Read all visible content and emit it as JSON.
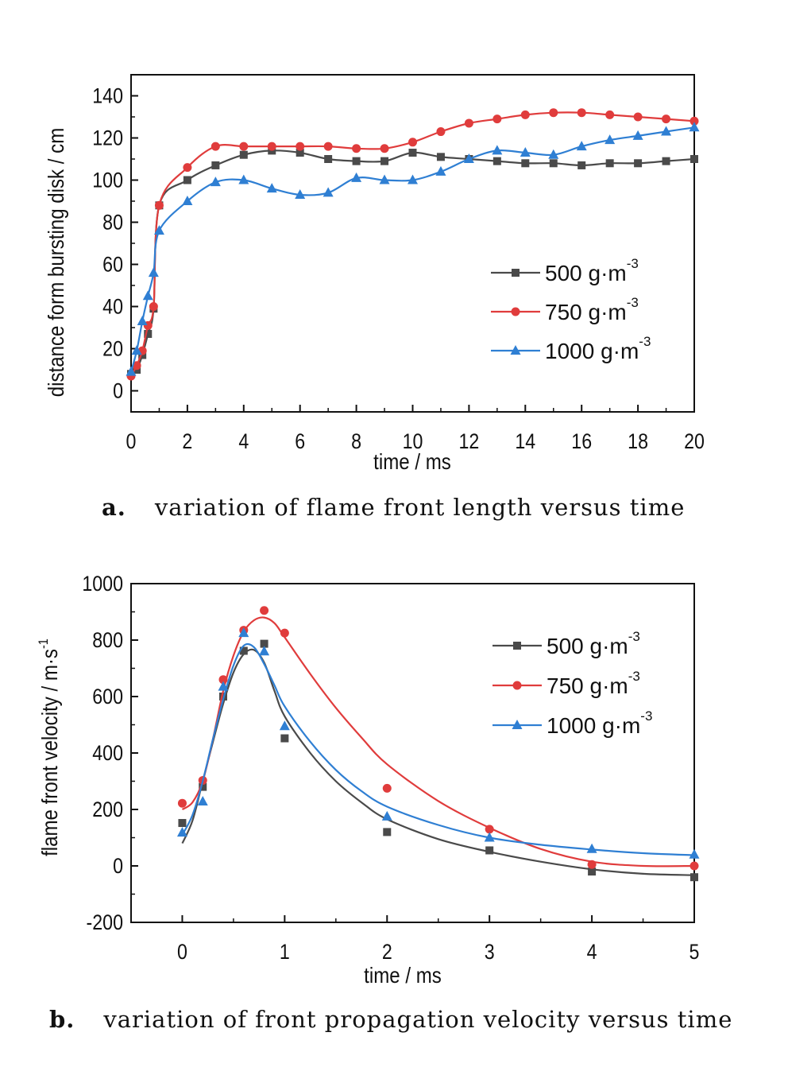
{
  "colors": {
    "s500": "#4a4a4a",
    "s750": "#e03c3c",
    "s1000": "#2f7fd3"
  },
  "captions": {
    "a_tag": "a.",
    "a_text": "variation of flame front length versus time",
    "b_tag": "b.",
    "b_text": "variation of front propagation velocity versus time"
  },
  "chart_data": [
    {
      "type": "line",
      "xlabel": "time / ms",
      "ylabel": "distance form bursting disk / cm",
      "xlim": [
        0,
        20
      ],
      "ylim": [
        -10,
        150
      ],
      "xticks": [
        0,
        2,
        4,
        6,
        8,
        10,
        12,
        14,
        16,
        18,
        20
      ],
      "yticks": [
        0,
        20,
        40,
        60,
        80,
        100,
        120,
        140
      ],
      "legend_position": "lower-right",
      "series": [
        {
          "name": "500 g·m",
          "sup": "-3",
          "color": "#4a4a4a",
          "marker": "square",
          "x": [
            0,
            0.2,
            0.4,
            0.6,
            0.8,
            1,
            2,
            3,
            4,
            5,
            6,
            7,
            8,
            9,
            10,
            11,
            12,
            13,
            14,
            15,
            16,
            17,
            18,
            19,
            20
          ],
          "y": [
            8,
            10,
            17,
            27,
            39,
            88,
            100,
            107,
            112,
            114,
            113,
            110,
            109,
            109,
            113,
            111,
            110,
            109,
            108,
            108,
            107,
            108,
            108,
            109,
            110
          ]
        },
        {
          "name": "750 g·m",
          "sup": "-3",
          "color": "#e03c3c",
          "marker": "circle",
          "x": [
            0,
            0.2,
            0.4,
            0.6,
            0.8,
            1,
            2,
            3,
            4,
            5,
            6,
            7,
            8,
            9,
            10,
            11,
            12,
            13,
            14,
            15,
            16,
            17,
            18,
            19,
            20
          ],
          "y": [
            7,
            12,
            19,
            31,
            40,
            88,
            106,
            116,
            116,
            116,
            116,
            116,
            115,
            115,
            118,
            123,
            127,
            129,
            131,
            132,
            132,
            131,
            130,
            129,
            128
          ]
        },
        {
          "name": "1000 g·m",
          "sup": "-3",
          "color": "#2f7fd3",
          "marker": "triangle",
          "x": [
            0,
            0.2,
            0.4,
            0.6,
            0.8,
            1,
            2,
            3,
            4,
            5,
            6,
            7,
            8,
            9,
            10,
            11,
            12,
            13,
            14,
            15,
            16,
            17,
            18,
            19,
            20
          ],
          "y": [
            9,
            19,
            33,
            45,
            56,
            76,
            90,
            99,
            100,
            96,
            93,
            94,
            101,
            100,
            100,
            104,
            110,
            114,
            113,
            112,
            116,
            119,
            121,
            123,
            125
          ]
        }
      ]
    },
    {
      "type": "scatter",
      "xlabel": "time  / ms",
      "ylabel": "flame front velocity / m·s",
      "ylabel_sup": "-1",
      "xlim": [
        -0.5,
        5
      ],
      "ylim": [
        -200,
        1000
      ],
      "xticks": [
        0,
        1,
        2,
        3,
        4,
        5
      ],
      "yticks": [
        -200,
        0,
        200,
        400,
        600,
        800,
        1000
      ],
      "legend_position": "upper-right",
      "series": [
        {
          "name": "500 g·m",
          "sup": "-3",
          "color": "#4a4a4a",
          "marker": "square",
          "x": [
            0,
            0.2,
            0.4,
            0.6,
            0.8,
            1,
            2,
            3,
            4,
            5
          ],
          "y": [
            152,
            280,
            600,
            762,
            787,
            452,
            120,
            55,
            -20,
            -40
          ],
          "fit_x": [
            0,
            0.1,
            0.2,
            0.3,
            0.4,
            0.5,
            0.6,
            0.7,
            0.8,
            0.9,
            1,
            1.25,
            1.5,
            1.75,
            2,
            2.5,
            3,
            3.5,
            4,
            4.5,
            5
          ],
          "fit_y": [
            80,
            160,
            300,
            440,
            575,
            685,
            750,
            765,
            720,
            620,
            530,
            400,
            300,
            225,
            165,
            95,
            50,
            15,
            -12,
            -28,
            -33
          ]
        },
        {
          "name": "750 g·m",
          "sup": "-3",
          "color": "#e03c3c",
          "marker": "circle",
          "x": [
            0,
            0.2,
            0.4,
            0.6,
            0.8,
            1,
            2,
            3,
            4,
            5
          ],
          "y": [
            222,
            303,
            660,
            835,
            905,
            825,
            275,
            130,
            5,
            0
          ],
          "fit_x": [
            0,
            0.1,
            0.2,
            0.3,
            0.4,
            0.5,
            0.6,
            0.7,
            0.8,
            0.9,
            1,
            1.25,
            1.5,
            1.75,
            2,
            2.5,
            3,
            3.5,
            4,
            4.5,
            5
          ],
          "fit_y": [
            200,
            225,
            300,
            450,
            620,
            745,
            830,
            870,
            880,
            860,
            810,
            680,
            560,
            455,
            360,
            230,
            135,
            60,
            15,
            0,
            0
          ]
        },
        {
          "name": "1000 g·m",
          "sup": "-3",
          "color": "#2f7fd3",
          "marker": "triangle",
          "x": [
            0,
            0.2,
            0.4,
            0.6,
            0.8,
            1,
            2,
            3,
            4,
            5
          ],
          "y": [
            118,
            228,
            635,
            825,
            760,
            495,
            175,
            100,
            60,
            40
          ],
          "fit_x": [
            0,
            0.1,
            0.2,
            0.3,
            0.4,
            0.5,
            0.6,
            0.7,
            0.8,
            0.9,
            1,
            1.25,
            1.5,
            1.75,
            2,
            2.5,
            3,
            3.5,
            4,
            4.5,
            5
          ],
          "fit_y": [
            110,
            180,
            300,
            450,
            590,
            710,
            780,
            775,
            715,
            640,
            565,
            440,
            340,
            265,
            210,
            145,
            100,
            75,
            58,
            45,
            38
          ]
        }
      ]
    }
  ]
}
